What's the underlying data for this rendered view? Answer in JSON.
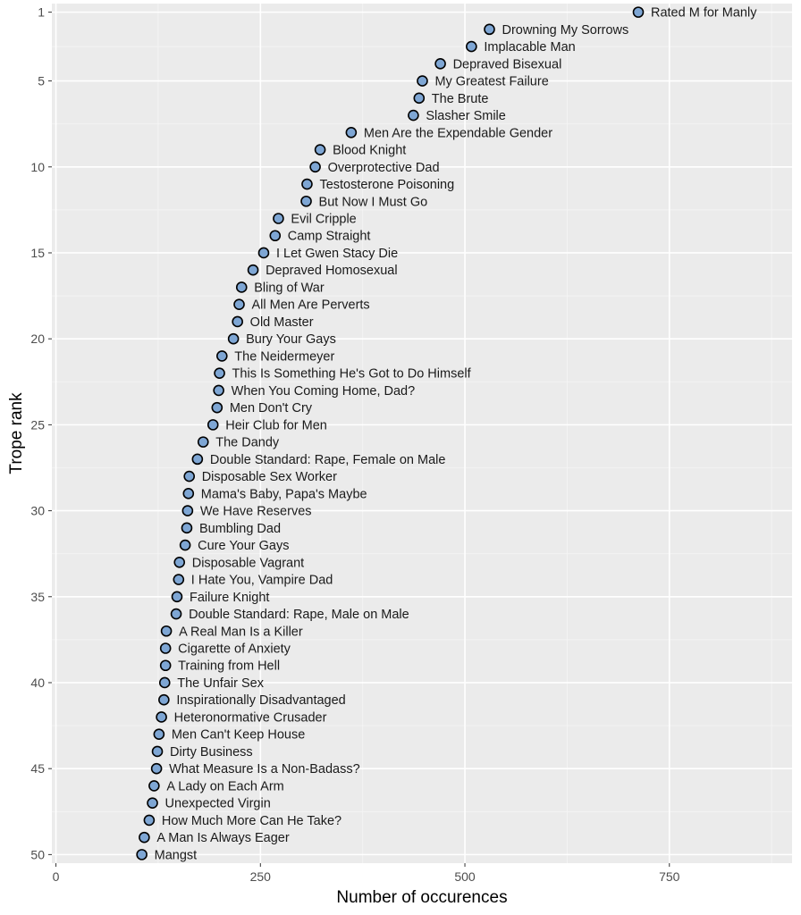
{
  "chart_data": {
    "type": "scatter",
    "title": "",
    "xlabel": "Number of occurences",
    "ylabel": "Trope rank",
    "xlim": [
      -5,
      900
    ],
    "ylim": [
      0.5,
      50.5
    ],
    "y_reversed": true,
    "x_ticks": [
      0,
      250,
      500,
      750
    ],
    "y_ticks": [
      1,
      5,
      10,
      15,
      20,
      25,
      30,
      35,
      40,
      45,
      50
    ],
    "grid": true,
    "background": "#ebebeb",
    "point_fill": "#7ea6d4",
    "point_stroke": "#000000",
    "points": [
      {
        "rank": 1,
        "x": 712,
        "label": "Rated M for Manly"
      },
      {
        "rank": 2,
        "x": 530,
        "label": "Drowning My Sorrows"
      },
      {
        "rank": 3,
        "x": 508,
        "label": "Implacable Man"
      },
      {
        "rank": 4,
        "x": 470,
        "label": "Depraved Bisexual"
      },
      {
        "rank": 5,
        "x": 448,
        "label": "My Greatest Failure"
      },
      {
        "rank": 6,
        "x": 444,
        "label": "The Brute"
      },
      {
        "rank": 7,
        "x": 437,
        "label": "Slasher Smile"
      },
      {
        "rank": 8,
        "x": 361,
        "label": "Men Are the Expendable Gender"
      },
      {
        "rank": 9,
        "x": 323,
        "label": "Blood Knight"
      },
      {
        "rank": 10,
        "x": 317,
        "label": "Overprotective Dad"
      },
      {
        "rank": 11,
        "x": 307,
        "label": "Testosterone Poisoning"
      },
      {
        "rank": 12,
        "x": 306,
        "label": "But Now I Must Go"
      },
      {
        "rank": 13,
        "x": 272,
        "label": "Evil Cripple"
      },
      {
        "rank": 14,
        "x": 268,
        "label": "Camp Straight"
      },
      {
        "rank": 15,
        "x": 254,
        "label": "I Let Gwen Stacy Die"
      },
      {
        "rank": 16,
        "x": 241,
        "label": "Depraved Homosexual"
      },
      {
        "rank": 17,
        "x": 227,
        "label": "Bling of War"
      },
      {
        "rank": 18,
        "x": 224,
        "label": "All Men Are Perverts"
      },
      {
        "rank": 19,
        "x": 222,
        "label": "Old Master"
      },
      {
        "rank": 20,
        "x": 217,
        "label": "Bury Your Gays"
      },
      {
        "rank": 21,
        "x": 203,
        "label": "The Neidermeyer"
      },
      {
        "rank": 22,
        "x": 200,
        "label": "This Is Something He's Got to Do Himself"
      },
      {
        "rank": 23,
        "x": 199,
        "label": "When You Coming Home, Dad?"
      },
      {
        "rank": 24,
        "x": 197,
        "label": "Men Don't Cry"
      },
      {
        "rank": 25,
        "x": 192,
        "label": "Heir Club for Men"
      },
      {
        "rank": 26,
        "x": 180,
        "label": "The Dandy"
      },
      {
        "rank": 27,
        "x": 173,
        "label": "Double Standard: Rape, Female on Male"
      },
      {
        "rank": 28,
        "x": 163,
        "label": "Disposable Sex Worker"
      },
      {
        "rank": 29,
        "x": 162,
        "label": "Mama's Baby, Papa's Maybe"
      },
      {
        "rank": 30,
        "x": 161,
        "label": "We Have Reserves"
      },
      {
        "rank": 31,
        "x": 160,
        "label": "Bumbling Dad"
      },
      {
        "rank": 32,
        "x": 158,
        "label": "Cure Your Gays"
      },
      {
        "rank": 33,
        "x": 151,
        "label": "Disposable Vagrant"
      },
      {
        "rank": 34,
        "x": 150,
        "label": "I Hate You, Vampire Dad"
      },
      {
        "rank": 35,
        "x": 148,
        "label": "Failure Knight"
      },
      {
        "rank": 36,
        "x": 147,
        "label": "Double Standard: Rape, Male on Male"
      },
      {
        "rank": 37,
        "x": 135,
        "label": "A Real Man Is a Killer"
      },
      {
        "rank": 38,
        "x": 134,
        "label": "Cigarette of Anxiety"
      },
      {
        "rank": 39,
        "x": 134,
        "label": "Training from Hell"
      },
      {
        "rank": 40,
        "x": 133,
        "label": "The Unfair Sex"
      },
      {
        "rank": 41,
        "x": 132,
        "label": "Inspirationally Disadvantaged"
      },
      {
        "rank": 42,
        "x": 129,
        "label": "Heteronormative Crusader"
      },
      {
        "rank": 43,
        "x": 126,
        "label": "Men Can't Keep House"
      },
      {
        "rank": 44,
        "x": 124,
        "label": "Dirty Business"
      },
      {
        "rank": 45,
        "x": 123,
        "label": "What Measure Is a Non-Badass?"
      },
      {
        "rank": 46,
        "x": 120,
        "label": "A Lady on Each Arm"
      },
      {
        "rank": 47,
        "x": 118,
        "label": "Unexpected Virgin"
      },
      {
        "rank": 48,
        "x": 114,
        "label": "How Much More Can He Take?"
      },
      {
        "rank": 49,
        "x": 108,
        "label": "A Man Is Always Eager"
      },
      {
        "rank": 50,
        "x": 105,
        "label": "Mangst"
      }
    ]
  }
}
